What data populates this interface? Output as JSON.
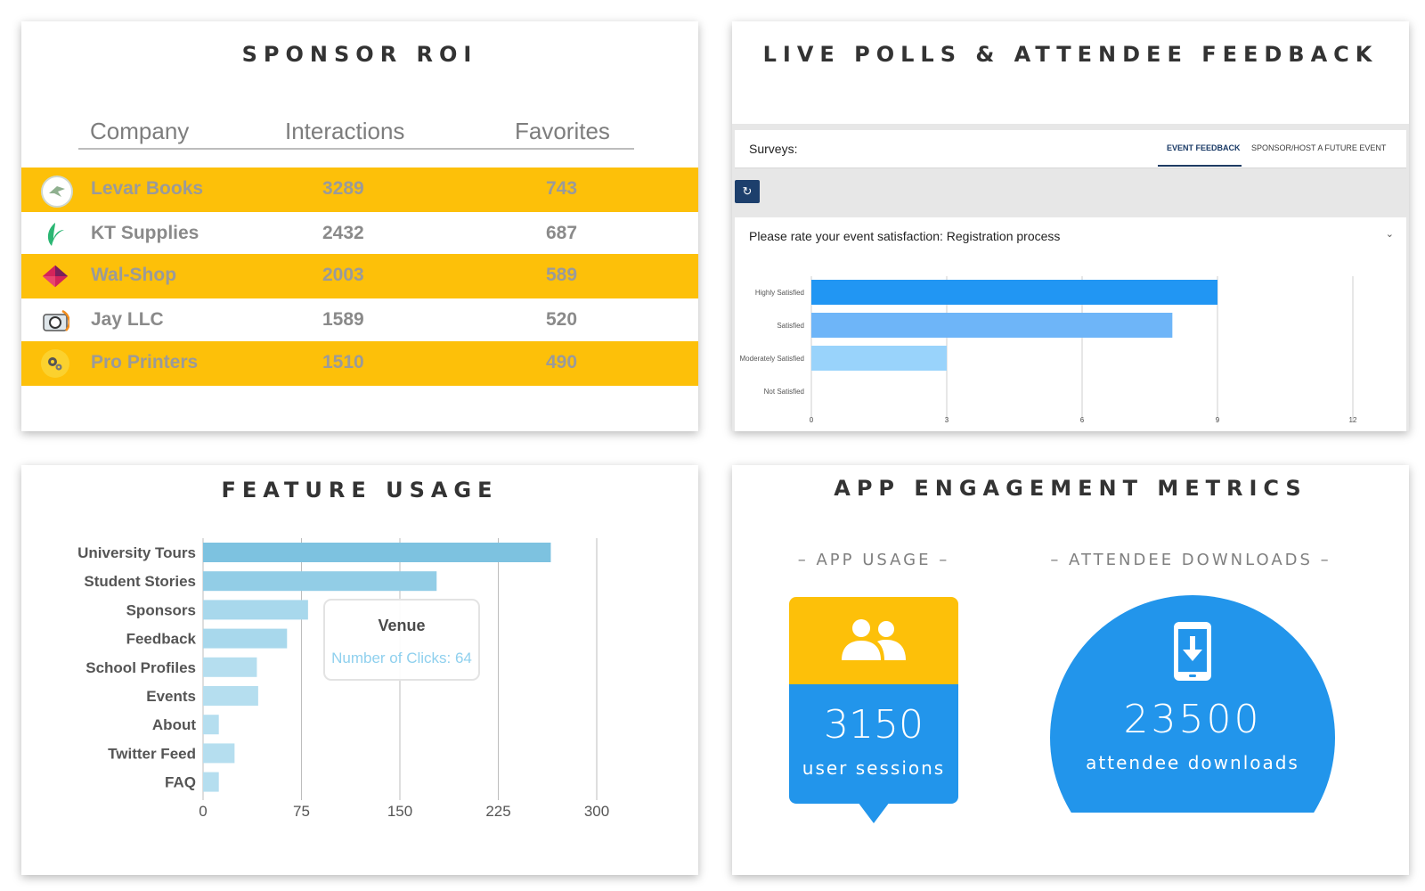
{
  "sponsor_roi": {
    "title": "SPONSOR ROI",
    "headers": {
      "company": "Company",
      "interactions": "Interactions",
      "favorites": "Favorites"
    },
    "rows": [
      {
        "company": "Levar Books",
        "interactions": "3289",
        "favorites": "743",
        "logo": "bird-logo-icon",
        "highlight": true
      },
      {
        "company": "KT Supplies",
        "interactions": "2432",
        "favorites": "687",
        "logo": "leaf-logo-icon",
        "highlight": false
      },
      {
        "company": "Wal-Shop",
        "interactions": "2003",
        "favorites": "589",
        "logo": "diamond-logo-icon",
        "highlight": true
      },
      {
        "company": "Jay LLC",
        "interactions": "1589",
        "favorites": "520",
        "logo": "camera-logo-icon",
        "highlight": false
      },
      {
        "company": "Pro Printers",
        "interactions": "1510",
        "favorites": "490",
        "logo": "gears-logo-icon",
        "highlight": true
      }
    ],
    "highlight_color": "#fdc009"
  },
  "live_polls": {
    "title": "LIVE POLLS & ATTENDEE FEEDBACK",
    "surveys_label": "Surveys:",
    "tabs": [
      {
        "label": "EVENT FEEDBACK",
        "active": true
      },
      {
        "label": "SPONSOR/HOST A FUTURE EVENT",
        "active": false
      }
    ],
    "refresh_icon": "refresh-icon",
    "question": "Please rate your event satisfaction: Registration process",
    "caret": "⌄"
  },
  "feature_usage": {
    "title": "FEATURE USAGE",
    "tooltip": {
      "title": "Venue",
      "value": "Number of Clicks: 64"
    }
  },
  "app_engagement": {
    "title": "APP ENGAGEMENT METRICS",
    "app_usage_label": "– APP USAGE –",
    "downloads_label": "– ATTENDEE DOWNLOADS –",
    "sessions_value": "3150",
    "sessions_label": "user sessions",
    "downloads_value": "23500",
    "downloads_text": "attendee downloads",
    "colors": {
      "yellow": "#fdc009",
      "blue": "#2295eb"
    }
  },
  "chart_data": [
    {
      "id": "satisfaction",
      "type": "bar",
      "orientation": "horizontal",
      "categories": [
        "Highly Satisfied",
        "Satisfied",
        "Moderately Satisfied",
        "Not Satisfied"
      ],
      "values": [
        9,
        8,
        3,
        0
      ],
      "colors": [
        "#2196f3",
        "#6eb5f8",
        "#99d3fb",
        "#c8e6fb"
      ],
      "xlim": [
        0,
        12
      ],
      "xticks": [
        "0",
        "3",
        "6",
        "9",
        "12"
      ],
      "grid": true
    },
    {
      "id": "feature",
      "type": "bar",
      "orientation": "horizontal",
      "categories": [
        "University Tours",
        "Student Stories",
        "Sponsors",
        "Feedback",
        "School Profiles",
        "Events",
        "About",
        "Twitter Feed",
        "FAQ"
      ],
      "values": [
        265,
        178,
        80,
        64,
        41,
        42,
        12,
        24,
        12
      ],
      "colors": [
        "#7dc2e0",
        "#92cde6",
        "#a8d8ec",
        "#a8d8ec",
        "#b5deef",
        "#b5deef",
        "#b5deef",
        "#b5deef",
        "#b5deef"
      ],
      "xlim": [
        0,
        300
      ],
      "xticks": [
        "0",
        "75",
        "150",
        "225",
        "300"
      ],
      "grid": true
    }
  ]
}
